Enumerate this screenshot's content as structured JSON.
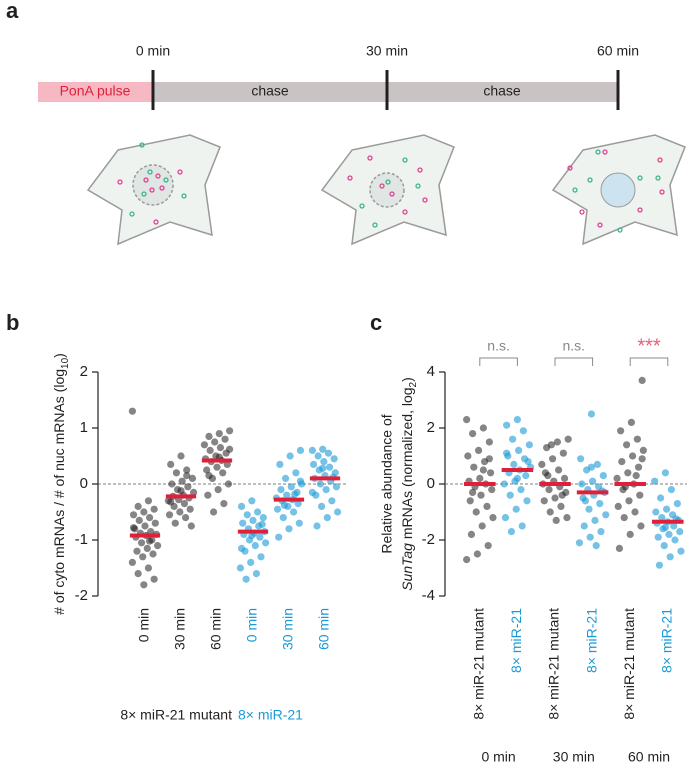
{
  "diagram": {
    "label": "a",
    "times": [
      "0 min",
      "30 min",
      "60 min"
    ],
    "pulse": "PonA pulse",
    "chase": [
      "chase",
      "chase"
    ]
  },
  "chart_data": [
    {
      "type": "strip",
      "panel": "b",
      "ylabel": {
        "text": "# of cyto mRNAs / # of nuc mRNAs (log",
        "sub": "10",
        "end": ")"
      },
      "categories": [
        "0 min",
        "30 min",
        "60 min",
        "0 min",
        "30 min",
        "60 min"
      ],
      "category_colors": [
        "#231f20",
        "#231f20",
        "#231f20",
        "#1a9ad6",
        "#1a9ad6",
        "#1a9ad6"
      ],
      "groups": [
        {
          "label": "8× miR-21 mutant",
          "color": "#231f20"
        },
        {
          "label": "8× miR-21",
          "color": "#1a9ad6"
        }
      ],
      "ylim": [
        -2,
        2
      ],
      "yticks": [
        -2,
        -1,
        0,
        1,
        2
      ],
      "zero_line": true,
      "median_color": "#e0203a",
      "values": [
        [
          1.3,
          -0.3,
          -0.4,
          -0.45,
          -0.5,
          -0.55,
          -0.6,
          -0.65,
          -0.7,
          -0.75,
          -0.8,
          -0.85,
          -0.88,
          -0.9,
          -0.92,
          -0.95,
          -1.0,
          -1.05,
          -1.1,
          -1.15,
          -1.2,
          -1.25,
          -1.3,
          -1.4,
          -1.5,
          -1.6,
          -1.7,
          -1.8,
          -0.78,
          -1.02
        ],
        [
          0.5,
          0.35,
          0.25,
          0.2,
          0.1,
          0.05,
          0,
          -0.05,
          -0.1,
          -0.15,
          -0.2,
          -0.22,
          -0.25,
          -0.28,
          -0.3,
          -0.35,
          -0.4,
          -0.45,
          -0.5,
          -0.55,
          -0.6,
          -0.7,
          -0.75,
          -0.12,
          -0.32,
          0.15
        ],
        [
          0.95,
          0.9,
          0.85,
          0.8,
          0.75,
          0.7,
          0.65,
          0.6,
          0.55,
          0.5,
          0.45,
          0.42,
          0.4,
          0.35,
          0.3,
          0.25,
          0.2,
          0.1,
          0,
          -0.1,
          -0.2,
          -0.35,
          -0.5,
          0.62,
          0.48,
          0.15
        ],
        [
          -0.3,
          -0.4,
          -0.5,
          -0.55,
          -0.6,
          -0.65,
          -0.7,
          -0.75,
          -0.8,
          -0.85,
          -0.88,
          -0.9,
          -0.95,
          -1.0,
          -1.05,
          -1.1,
          -1.2,
          -1.3,
          -1.4,
          -1.5,
          -1.6,
          -1.7,
          -0.72,
          -0.92,
          -1.15
        ],
        [
          0.6,
          0.5,
          0.35,
          0.2,
          0.1,
          0,
          -0.05,
          -0.1,
          -0.15,
          -0.2,
          -0.25,
          -0.28,
          -0.3,
          -0.35,
          -0.4,
          -0.45,
          -0.5,
          -0.6,
          -0.7,
          -0.8,
          -0.95,
          -0.18,
          -0.38,
          0.05
        ],
        [
          0.62,
          0.6,
          0.55,
          0.5,
          0.45,
          0.4,
          0.35,
          0.3,
          0.25,
          0.2,
          0.15,
          0.1,
          0.05,
          0,
          -0.05,
          -0.1,
          -0.2,
          -0.3,
          -0.4,
          -0.5,
          -0.6,
          -0.75,
          0.12,
          0.28,
          -0.15
        ]
      ],
      "medians": [
        -0.92,
        -0.22,
        0.42,
        -0.85,
        -0.28,
        0.1
      ]
    },
    {
      "type": "strip",
      "panel": "c",
      "ylabel": {
        "line1": "Relative abundance of",
        "italic": "SunTag",
        "text": " mRNAs (normalized, log",
        "sub": "2",
        "end": ")"
      },
      "categories": [
        "8× miR-21 mutant",
        "8× miR-21",
        "8× miR-21 mutant",
        "8× miR-21",
        "8× miR-21 mutant",
        "8× miR-21"
      ],
      "category_colors": [
        "#231f20",
        "#1a9ad6",
        "#231f20",
        "#1a9ad6",
        "#231f20",
        "#1a9ad6"
      ],
      "x_groups": [
        "0 min",
        "30 min",
        "60 min"
      ],
      "annotations": [
        {
          "text": "n.s.",
          "color": "#888888"
        },
        {
          "text": "n.s.",
          "color": "#888888"
        },
        {
          "text": "***",
          "color": "#e8607a"
        }
      ],
      "ylim": [
        -4,
        4
      ],
      "yticks": [
        -4,
        -2,
        0,
        2,
        4
      ],
      "zero_line": true,
      "median_color": "#e0203a",
      "values": [
        [
          2.3,
          2.0,
          1.8,
          1.5,
          1.2,
          1.0,
          0.8,
          0.6,
          0.4,
          0.2,
          0.1,
          0,
          -0.1,
          -0.2,
          -0.4,
          -0.6,
          -0.8,
          -1.0,
          -1.2,
          -1.5,
          -1.8,
          -2.2,
          -2.5,
          -2.7,
          0.5,
          -0.3,
          0.9
        ],
        [
          2.3,
          2.1,
          1.9,
          1.6,
          1.4,
          1.2,
          1.0,
          0.9,
          0.7,
          0.6,
          0.5,
          0.4,
          0.3,
          0.1,
          0,
          -0.2,
          -0.4,
          -0.6,
          -0.9,
          -1.2,
          -1.5,
          -1.7,
          0.8,
          0.2,
          1.1
        ],
        [
          1.6,
          1.5,
          1.3,
          1.1,
          0.9,
          0.7,
          0.5,
          0.3,
          0.2,
          0.1,
          0,
          -0.1,
          -0.2,
          -0.3,
          -0.5,
          -0.6,
          -0.8,
          -1.0,
          -1.2,
          -1.3,
          0.4,
          -0.4,
          1.4
        ],
        [
          2.5,
          0.9,
          0.7,
          0.5,
          0.3,
          0.1,
          0,
          -0.1,
          -0.2,
          -0.3,
          -0.4,
          -0.5,
          -0.7,
          -0.9,
          -1.1,
          -1.3,
          -1.5,
          -1.7,
          -1.9,
          -2.1,
          -2.2,
          -0.6,
          -0.25,
          0.6
        ],
        [
          3.7,
          2.2,
          1.9,
          1.6,
          1.4,
          1.2,
          1.0,
          0.8,
          0.6,
          0.4,
          0.2,
          0,
          -0.2,
          -0.4,
          -0.6,
          -0.8,
          -1.0,
          -1.2,
          -1.5,
          -1.8,
          -2.3,
          0.3,
          -0.1,
          0.9
        ],
        [
          0.4,
          0.1,
          -0.2,
          -0.5,
          -0.7,
          -0.9,
          -1.0,
          -1.1,
          -1.2,
          -1.3,
          -1.35,
          -1.4,
          -1.5,
          -1.6,
          -1.7,
          -1.8,
          -1.9,
          -2.0,
          -2.2,
          -2.4,
          -2.6,
          -2.9,
          -1.25,
          -1.55
        ]
      ],
      "medians": [
        0,
        0.5,
        0,
        -0.3,
        0,
        -1.35
      ]
    }
  ]
}
